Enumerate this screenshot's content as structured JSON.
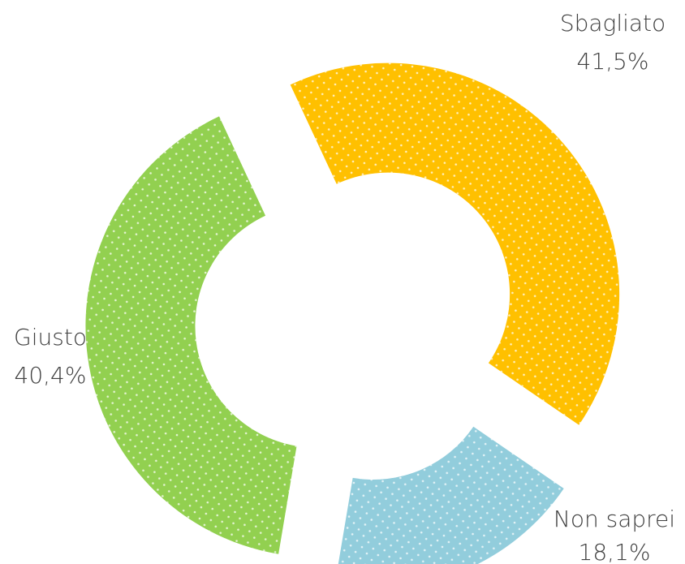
{
  "chart_data": {
    "type": "pie",
    "style": "exploded-donut",
    "pattern": "white-dots",
    "slices": [
      {
        "name": "Sbagliato",
        "value": 41.5,
        "value_label": "41,5%",
        "color": "#ffc000"
      },
      {
        "name": "Non saprei",
        "value": 18.1,
        "value_label": "18,1%",
        "color": "#92cddc"
      },
      {
        "name": "Giusto",
        "value": 40.4,
        "value_label": "40,4%",
        "color": "#92d050"
      }
    ]
  }
}
